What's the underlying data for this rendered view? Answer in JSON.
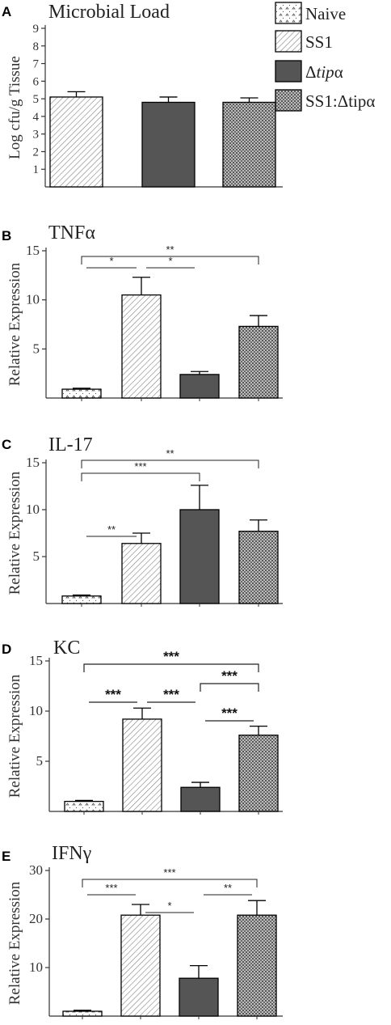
{
  "legend": {
    "items": [
      {
        "label": "Naive",
        "pattern": "naive"
      },
      {
        "label": "SS1",
        "pattern": "ss1"
      },
      {
        "label": "Δtipα",
        "pattern": "tipa"
      },
      {
        "label": "SS1:Δtipα",
        "pattern": "ss1tipa"
      }
    ]
  },
  "colors": {
    "tipa_fill": "#555555",
    "axis": "#333333"
  },
  "chart_data": [
    {
      "panel": "A",
      "type": "bar",
      "title": "Microbial Load",
      "ylabel": "Log cfu/g Tissue",
      "ylim": [
        0,
        9
      ],
      "yticks": [
        1,
        2,
        3,
        4,
        5,
        6,
        7,
        8,
        9
      ],
      "series": [
        {
          "name": "SS1",
          "value": 5.1,
          "error": 0.3
        },
        {
          "name": "Δtipα",
          "value": 4.8,
          "error": 0.3
        },
        {
          "name": "SS1:Δtipα",
          "value": 4.8,
          "error": 0.25
        }
      ],
      "significance": []
    },
    {
      "panel": "B",
      "type": "bar",
      "title": "TNFα",
      "ylabel": "Relative Expression",
      "ylim": [
        0,
        15
      ],
      "yticks": [
        5,
        10,
        15
      ],
      "series": [
        {
          "name": "Naive",
          "value": 0.9,
          "error": 0.1
        },
        {
          "name": "SS1",
          "value": 10.5,
          "error": 1.8
        },
        {
          "name": "Δtipα",
          "value": 2.4,
          "error": 0.3
        },
        {
          "name": "SS1:Δtipα",
          "value": 7.3,
          "error": 1.1
        }
      ],
      "significance": [
        {
          "from": 0,
          "to": 3,
          "label": "**",
          "level": 3
        },
        {
          "from": 0,
          "to": 1,
          "label": "*",
          "level": 2
        },
        {
          "from": 1,
          "to": 2,
          "label": "*",
          "level": 2
        }
      ]
    },
    {
      "panel": "C",
      "type": "bar",
      "title": "IL-17",
      "ylabel": "Relative Expression",
      "ylim": [
        0,
        15
      ],
      "yticks": [
        5,
        10,
        15
      ],
      "series": [
        {
          "name": "Naive",
          "value": 0.8,
          "error": 0.1
        },
        {
          "name": "SS1",
          "value": 6.4,
          "error": 1.1
        },
        {
          "name": "Δtipα",
          "value": 10.0,
          "error": 2.6
        },
        {
          "name": "SS1:Δtipα",
          "value": 7.7,
          "error": 1.2
        }
      ],
      "significance": [
        {
          "from": 0,
          "to": 3,
          "label": "**",
          "level": 3
        },
        {
          "from": 0,
          "to": 2,
          "label": "***",
          "level": 2.3
        },
        {
          "from": 0,
          "to": 1,
          "label": "**",
          "level": 1
        }
      ]
    },
    {
      "panel": "D",
      "type": "bar",
      "title": "KC",
      "ylabel": "Relative Expression",
      "ylim": [
        0,
        15
      ],
      "yticks": [
        5,
        10,
        15
      ],
      "series": [
        {
          "name": "Naive",
          "value": 1.0,
          "error": 0.1
        },
        {
          "name": "SS1",
          "value": 9.2,
          "error": 1.1
        },
        {
          "name": "Δtipα",
          "value": 2.4,
          "error": 0.5
        },
        {
          "name": "SS1:Δtipα",
          "value": 7.6,
          "error": 0.9
        }
      ],
      "significance": [
        {
          "from": 0,
          "to": 3,
          "label": "***",
          "level": 3
        },
        {
          "from": 2,
          "to": 3,
          "label": "***",
          "level": 2
        },
        {
          "from": 0,
          "to": 1,
          "label": "***",
          "level": 1
        },
        {
          "from": 1,
          "to": 2,
          "label": "***",
          "level": 1
        },
        {
          "from": 2,
          "to": 3,
          "label": "***",
          "level": 0
        }
      ]
    },
    {
      "panel": "E",
      "type": "bar",
      "title": "IFNγ",
      "ylabel": "Relative Expression",
      "ylim": [
        0,
        30
      ],
      "yticks": [
        10,
        20,
        30
      ],
      "series": [
        {
          "name": "Naive",
          "value": 1.0,
          "error": 0.2
        },
        {
          "name": "SS1",
          "value": 20.8,
          "error": 2.2
        },
        {
          "name": "Δtipα",
          "value": 7.8,
          "error": 2.6
        },
        {
          "name": "SS1:Δtipα",
          "value": 20.8,
          "error": 3.0
        }
      ],
      "significance": [
        {
          "from": 0,
          "to": 3,
          "label": "***",
          "level": 3
        },
        {
          "from": 0,
          "to": 1,
          "label": "***",
          "level": 2
        },
        {
          "from": 1,
          "to": 2,
          "label": "*",
          "level": 1
        },
        {
          "from": 2,
          "to": 3,
          "label": "**",
          "level": 2
        }
      ]
    }
  ]
}
